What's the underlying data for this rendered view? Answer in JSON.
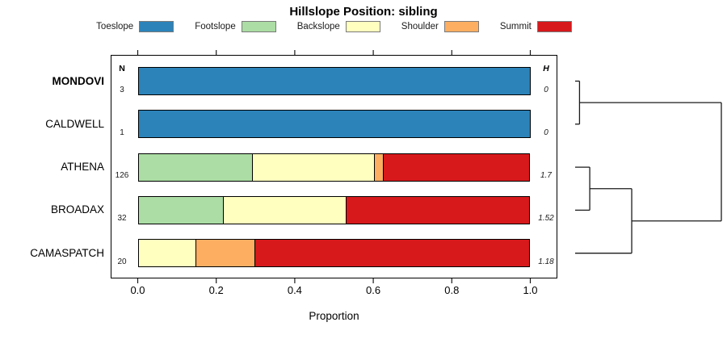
{
  "title": "Hillslope Position: sibling",
  "legend": {
    "items": [
      {
        "label": "Toeslope",
        "color": "#2B83BA"
      },
      {
        "label": "Footslope",
        "color": "#ABDDA4"
      },
      {
        "label": "Backslope",
        "color": "#FFFFBF"
      },
      {
        "label": "Shoulder",
        "color": "#FDAE61"
      },
      {
        "label": "Summit",
        "color": "#D7191C"
      }
    ]
  },
  "columns": {
    "n_header": "N",
    "h_header": "H"
  },
  "axis": {
    "title": "Proportion",
    "tick_labels": [
      "0.0",
      "0.2",
      "0.4",
      "0.6",
      "0.8",
      "1.0"
    ],
    "tick_values": [
      0,
      0.2,
      0.4,
      0.6,
      0.8,
      1.0
    ],
    "range": [
      0,
      1
    ]
  },
  "chart_data": {
    "type": "bar",
    "subtype": "horizontal-stacked-proportion",
    "title": "Hillslope Position: sibling",
    "xlabel": "Proportion",
    "xlim": [
      0,
      1
    ],
    "categories": [
      "Toeslope",
      "Footslope",
      "Backslope",
      "Shoulder",
      "Summit"
    ],
    "colors": {
      "Toeslope": "#2B83BA",
      "Footslope": "#ABDDA4",
      "Backslope": "#FFFFBF",
      "Shoulder": "#FDAE61",
      "Summit": "#D7191C"
    },
    "rows": [
      {
        "label": "MONDOVI",
        "emphasis": true,
        "n": "3",
        "h": "0",
        "segments": [
          {
            "category": "Toeslope",
            "value": 1.0
          }
        ]
      },
      {
        "label": "CALDWELL",
        "emphasis": false,
        "n": "1",
        "h": "0",
        "segments": [
          {
            "category": "Toeslope",
            "value": 1.0
          }
        ]
      },
      {
        "label": "ATHENA",
        "emphasis": false,
        "n": "126",
        "h": "1.7",
        "segments": [
          {
            "category": "Footslope",
            "value": 0.294
          },
          {
            "category": "Backslope",
            "value": 0.309
          },
          {
            "category": "Shoulder",
            "value": 0.024
          },
          {
            "category": "Summit",
            "value": 0.373
          }
        ]
      },
      {
        "label": "BROADAX",
        "emphasis": false,
        "n": "32",
        "h": "1.52",
        "segments": [
          {
            "category": "Footslope",
            "value": 0.219
          },
          {
            "category": "Backslope",
            "value": 0.312
          },
          {
            "category": "Summit",
            "value": 0.469
          }
        ]
      },
      {
        "label": "CAMASPATCH",
        "emphasis": false,
        "n": "20",
        "h": "1.18",
        "segments": [
          {
            "category": "Backslope",
            "value": 0.15
          },
          {
            "category": "Shoulder",
            "value": 0.15
          },
          {
            "category": "Summit",
            "value": 0.7
          }
        ]
      }
    ],
    "dendrogram": {
      "note": "agglomerative clustering of rows, drawn to the right; heights normalized 0-1",
      "leaves": [
        "MONDOVI",
        "CALDWELL",
        "ATHENA",
        "BROADAX",
        "CAMASPATCH"
      ],
      "merges": [
        {
          "a": {
            "leaf": "MONDOVI"
          },
          "b": {
            "leaf": "CALDWELL"
          },
          "height": 0.03
        },
        {
          "a": {
            "leaf": "ATHENA"
          },
          "b": {
            "leaf": "BROADAX"
          },
          "height": 0.1
        },
        {
          "a": {
            "merge": 1
          },
          "b": {
            "leaf": "CAMASPATCH"
          },
          "height": 0.387
        },
        {
          "a": {
            "merge": 0
          },
          "b": {
            "merge": 2
          },
          "height": 1.0
        }
      ]
    }
  }
}
